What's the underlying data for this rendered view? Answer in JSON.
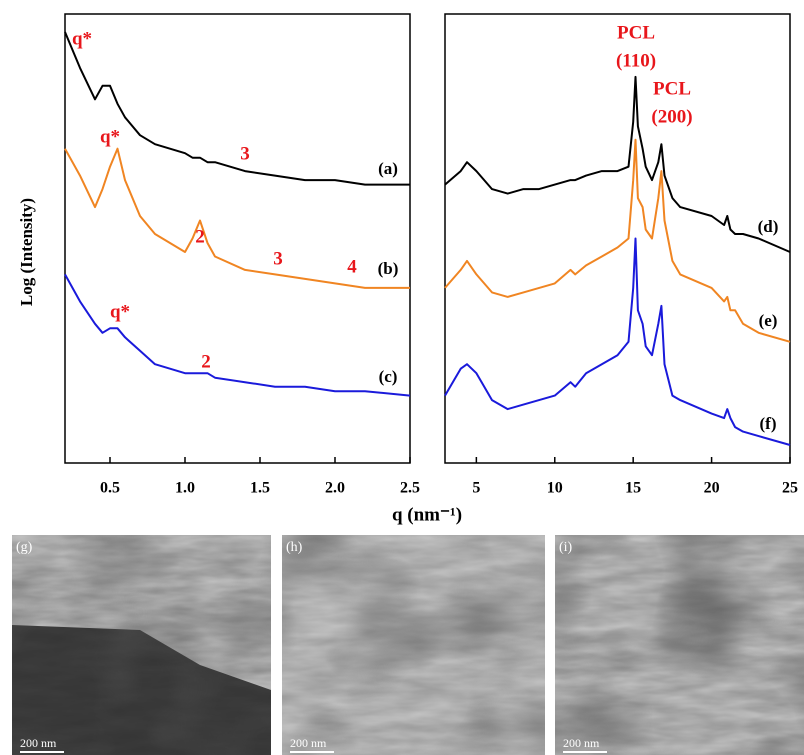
{
  "chart_data": [
    {
      "type": "line",
      "ylabel": "Log (Intensity)",
      "xlabel": "q (nm⁻¹)",
      "x": [
        0.2,
        0.3,
        0.4,
        0.45,
        0.5,
        0.55,
        0.6,
        0.7,
        0.8,
        0.9,
        1.0,
        1.05,
        1.1,
        1.15,
        1.2,
        1.4,
        1.6,
        1.8,
        2.0,
        2.2,
        2.5
      ],
      "xlim": [
        0.2,
        2.5
      ],
      "xticks": [
        0.5,
        {
          "value": 1,
          "label": "1.0"
        },
        1.5,
        {
          "value": 2,
          "label": "2.0"
        },
        2.5
      ],
      "ylim": [
        0,
        100
      ],
      "series": [
        {
          "name": "(a)",
          "color": "#000000",
          "values": [
            96,
            88,
            81,
            84,
            84,
            80,
            77,
            73,
            71,
            70,
            69,
            68,
            68,
            67,
            67,
            65,
            64,
            63,
            63,
            62,
            62
          ]
        },
        {
          "name": "(b)",
          "color": "#f08522",
          "values": [
            70,
            64,
            57,
            61,
            66,
            70,
            63,
            55,
            51,
            49,
            47,
            50,
            54,
            49,
            46,
            43,
            42,
            41,
            40,
            39,
            39
          ]
        },
        {
          "name": "(c)",
          "color": "#1a1adb",
          "values": [
            42,
            36,
            31,
            29,
            30,
            30,
            28,
            25,
            22,
            21,
            20,
            20,
            20,
            20,
            19,
            18,
            17,
            17,
            16,
            16,
            15
          ]
        }
      ],
      "annotations": [
        "q*",
        "3",
        "q*",
        "2",
        "3",
        "4",
        "q*",
        "2"
      ]
    },
    {
      "type": "line",
      "x": [
        3,
        4,
        4.4,
        5,
        6,
        7,
        8,
        9,
        10,
        11,
        11.3,
        12,
        13,
        14,
        14.7,
        15,
        15.15,
        15.3,
        15.6,
        15.8,
        16.2,
        16.6,
        16.8,
        17.0,
        17.5,
        18,
        20,
        20.8,
        21,
        21.2,
        21.5,
        22,
        23,
        25
      ],
      "xlim": [
        3,
        25
      ],
      "xticks": [
        5,
        10,
        15,
        20,
        25
      ],
      "ylim": [
        0,
        100
      ],
      "series": [
        {
          "name": "(d)",
          "color": "#000000",
          "values": [
            62,
            65,
            67,
            65,
            61,
            60,
            61,
            61,
            62,
            63,
            63,
            64,
            65,
            65,
            66,
            76,
            86,
            75,
            70,
            66,
            63,
            67,
            71,
            64,
            59,
            57,
            55,
            53,
            55,
            52,
            51,
            51,
            50,
            47
          ]
        },
        {
          "name": "(e)",
          "color": "#f08522",
          "values": [
            39,
            43,
            45,
            42,
            38,
            37,
            38,
            39,
            40,
            43,
            42,
            44,
            46,
            48,
            50,
            63,
            72,
            59,
            57,
            52,
            50,
            59,
            65,
            54,
            45,
            42,
            39,
            36,
            37,
            34,
            34,
            31,
            29,
            27
          ]
        },
        {
          "name": "(f)",
          "color": "#1a1adb",
          "values": [
            15,
            21,
            22,
            20,
            14,
            12,
            13,
            14,
            15,
            18,
            17,
            20,
            22,
            24,
            27,
            39,
            50,
            34,
            31,
            26,
            24,
            31,
            35,
            22,
            15,
            14,
            11,
            10,
            12,
            10,
            8,
            7,
            6,
            4
          ]
        }
      ],
      "annotations": [
        "PCL",
        "(110)",
        "PCL",
        "(200)"
      ]
    }
  ],
  "images": [
    {
      "label": "(g)",
      "scale": "200 nm"
    },
    {
      "label": "(h)",
      "scale": "200 nm"
    },
    {
      "label": "(i)",
      "scale": "200 nm"
    }
  ]
}
